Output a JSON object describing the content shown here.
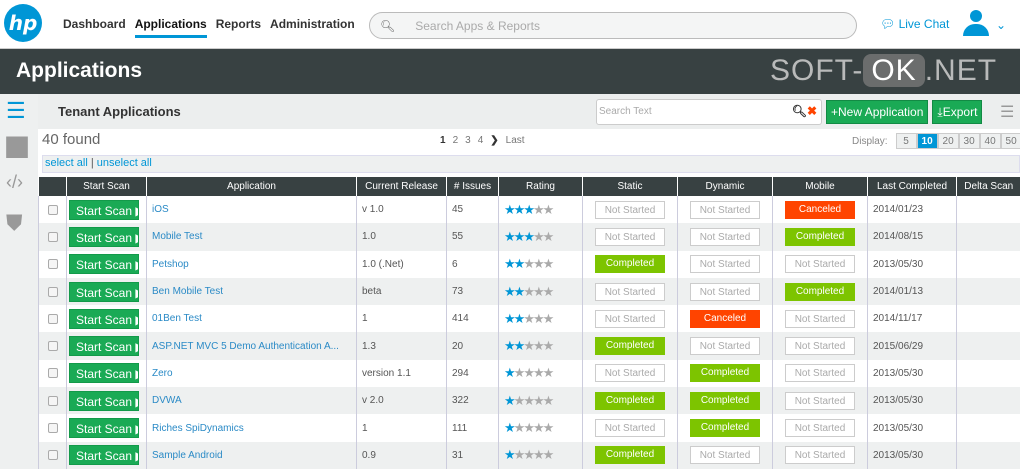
{
  "header": {
    "logo": "hp",
    "nav": [
      "Dashboard",
      "Applications",
      "Reports",
      "Administration"
    ],
    "active_nav": "Applications",
    "search_placeholder": "Search Apps & Reports",
    "live_chat": "Live Chat"
  },
  "page_title": "Applications",
  "subheader": {
    "title": "Tenant Applications",
    "search_placeholder": "Search Text",
    "new_app": "New Application",
    "export": "Export"
  },
  "found": "40 found",
  "pager": {
    "pages": [
      "1",
      "2",
      "3",
      "4"
    ],
    "current": "1",
    "last": "Last"
  },
  "display": {
    "label": "Display:",
    "options": [
      "5",
      "10",
      "20",
      "30",
      "40",
      "50"
    ],
    "selected": "10"
  },
  "select_all": "select all",
  "separator": "|",
  "unselect_all": "unselect all",
  "columns": [
    "",
    "Start Scan",
    "Application",
    "Current Release",
    "# Issues",
    "Rating",
    "Static",
    "Dynamic",
    "Mobile",
    "Last Completed",
    "Delta Scan"
  ],
  "start_scan_label": "Start Scan",
  "rows": [
    {
      "app": "iOS",
      "release": "v 1.0",
      "issues": "45",
      "rating": 3,
      "static": "Not Started",
      "dynamic": "Not Started",
      "mobile": "Canceled",
      "last": "2014/01/23"
    },
    {
      "app": "Mobile Test",
      "release": "1.0",
      "issues": "55",
      "rating": 3,
      "static": "Not Started",
      "dynamic": "Not Started",
      "mobile": "Completed",
      "last": "2014/08/15"
    },
    {
      "app": "Petshop",
      "release": "1.0 (.Net)",
      "issues": "6",
      "rating": 2,
      "static": "Completed",
      "dynamic": "Not Started",
      "mobile": "Not Started",
      "last": "2013/05/30"
    },
    {
      "app": "Ben Mobile Test",
      "release": "beta",
      "issues": "73",
      "rating": 2,
      "static": "Not Started",
      "dynamic": "Not Started",
      "mobile": "Completed",
      "last": "2014/01/13"
    },
    {
      "app": "01Ben Test",
      "release": "1",
      "issues": "414",
      "rating": 2,
      "static": "Not Started",
      "dynamic": "Canceled",
      "mobile": "Not Started",
      "last": "2014/11/17"
    },
    {
      "app": "ASP.NET MVC 5 Demo Authentication A...",
      "release": "1.3",
      "issues": "20",
      "rating": 2,
      "static": "Completed",
      "dynamic": "Not Started",
      "mobile": "Not Started",
      "last": "2015/06/29"
    },
    {
      "app": "Zero",
      "release": "version 1.1",
      "issues": "294",
      "rating": 1,
      "static": "Not Started",
      "dynamic": "Completed",
      "mobile": "Not Started",
      "last": "2013/05/30"
    },
    {
      "app": "DVWA",
      "release": "v 2.0",
      "issues": "322",
      "rating": 1,
      "static": "Completed",
      "dynamic": "Completed",
      "mobile": "Not Started",
      "last": "2013/05/30"
    },
    {
      "app": "Riches SpiDynamics",
      "release": "1",
      "issues": "111",
      "rating": 1,
      "static": "Not Started",
      "dynamic": "Completed",
      "mobile": "Not Started",
      "last": "2013/05/30"
    },
    {
      "app": "Sample Android",
      "release": "0.9",
      "issues": "31",
      "rating": 1,
      "static": "Completed",
      "dynamic": "Not Started",
      "mobile": "Not Started",
      "last": "2013/05/30"
    }
  ],
  "colors": {
    "brand": "#0096d6",
    "header_dark": "#384142",
    "green_button": "#1aaa55",
    "completed": "#7dc400",
    "canceled": "#ff4400"
  },
  "watermark": {
    "left": "SOFT-",
    "mid": "OK",
    "right": ".NET"
  }
}
